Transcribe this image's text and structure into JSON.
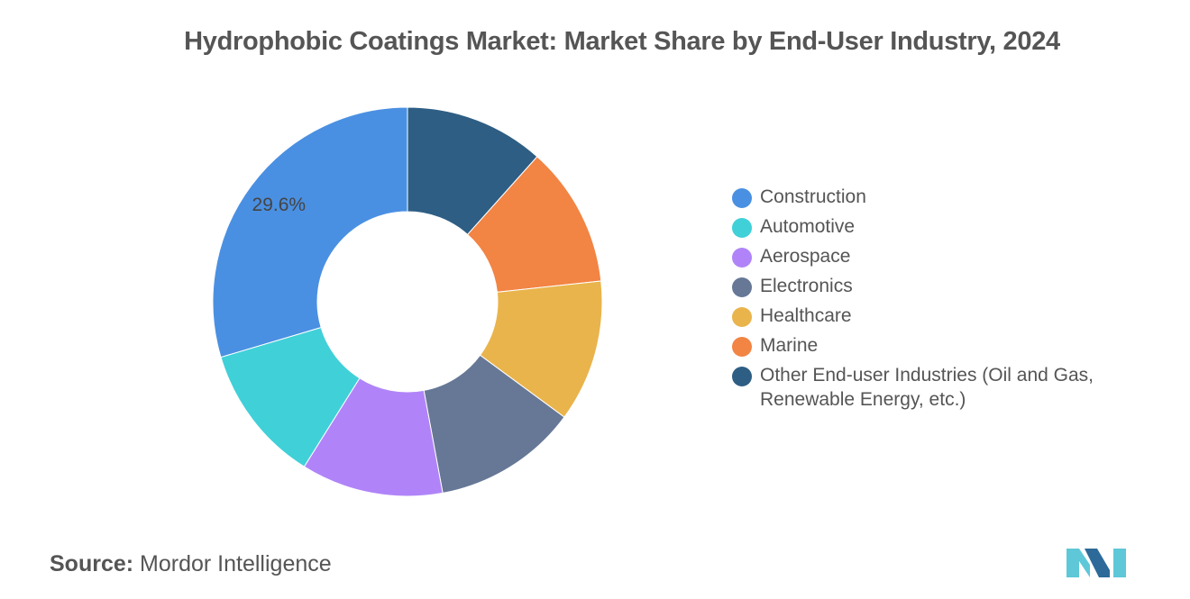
{
  "title": "Hydrophobic Coatings Market: Market Share by End-User Industry, 2024",
  "source": {
    "label": "Source:",
    "value": "Mordor Intelligence"
  },
  "chart_data": {
    "type": "pie",
    "subtype": "donut",
    "title": "Hydrophobic Coatings Market: Market Share by End-User Industry, 2024",
    "legend_position": "right",
    "series": [
      {
        "name": "Construction",
        "value": 29.6,
        "color": "#4a90e2",
        "label": "29.6%"
      },
      {
        "name": "Automotive",
        "value": 11.5,
        "color": "#40d0d8",
        "label": ""
      },
      {
        "name": "Aerospace",
        "value": 11.8,
        "color": "#b084f8",
        "label": ""
      },
      {
        "name": "Electronics",
        "value": 12.0,
        "color": "#667896",
        "label": ""
      },
      {
        "name": "Healthcare",
        "value": 11.8,
        "color": "#e9b44c",
        "label": ""
      },
      {
        "name": "Marine",
        "value": 11.7,
        "color": "#f28444",
        "label": ""
      },
      {
        "name": "Other End-user Industries (Oil and Gas, Renewable Energy, etc.)",
        "value": 11.6,
        "color": "#2e5e84",
        "label": ""
      }
    ]
  },
  "logo": {
    "name": "mordor-intelligence-logo",
    "color_light": "#5ec8d8",
    "color_dark": "#2d6a9a"
  }
}
